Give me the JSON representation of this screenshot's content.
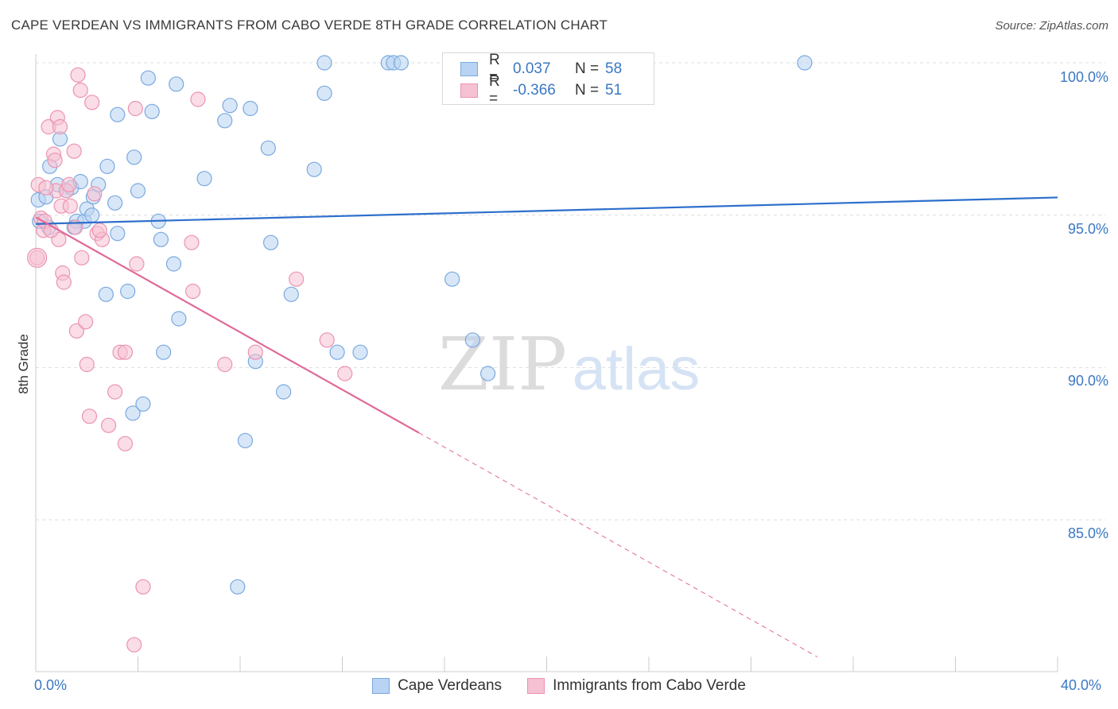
{
  "title": "CAPE VERDEAN VS IMMIGRANTS FROM CABO VERDE 8TH GRADE CORRELATION CHART",
  "source": "Source: ZipAtlas.com",
  "watermark": {
    "zip": "ZIP",
    "atlas": "atlas"
  },
  "colors": {
    "blue_fill": "#b8d3f3",
    "blue_stroke": "#7aa9df",
    "blue_line": "#2d6fcc",
    "pink_fill": "#f6c1d2",
    "pink_stroke": "#eb93b1",
    "pink_line": "#e0699a",
    "grid": "#dddddd",
    "tick_text": "#3b78c3"
  },
  "legend": {
    "rows": [
      {
        "r_label": "R =",
        "r_value": "0.037",
        "n_label": "N =",
        "n_value": "58"
      },
      {
        "r_label": "R =",
        "r_value": "-0.366",
        "n_label": "N =",
        "n_value": "51"
      }
    ]
  },
  "bottom_legend": [
    "Cape Verdeans",
    "Immigrants from Cabo Verde"
  ],
  "chart_data": {
    "type": "scatter",
    "title": "CAPE VERDEAN VS IMMIGRANTS FROM CABO VERDE 8TH GRADE CORRELATION CHART",
    "xlabel": "",
    "ylabel": "8th Grade",
    "xlim": [
      0,
      40
    ],
    "ylim": [
      80.5,
      101.0
    ],
    "x_tick_labels": [
      "0.0%",
      "40.0%"
    ],
    "y_ticks": [
      85,
      90,
      95,
      100
    ],
    "y_tick_labels": [
      "85.0%",
      "90.0%",
      "95.0%",
      "100.0%"
    ],
    "series": [
      {
        "name": "Cape Verdeans",
        "color": "#b8d3f3",
        "trend": {
          "x0": 0,
          "y0": 94.71,
          "x1": 40,
          "y1": 95.58,
          "dashed_from": null
        },
        "points": [
          [
            0.1,
            95.5
          ],
          [
            0.4,
            95.6
          ],
          [
            0.5,
            94.6
          ],
          [
            0.55,
            96.6
          ],
          [
            0.85,
            96.0
          ],
          [
            0.95,
            97.5
          ],
          [
            1.2,
            95.8
          ],
          [
            1.4,
            95.9
          ],
          [
            1.6,
            94.8
          ],
          [
            1.75,
            96.1
          ],
          [
            1.9,
            94.8
          ],
          [
            2.0,
            95.2
          ],
          [
            2.25,
            95.6
          ],
          [
            2.45,
            96.0
          ],
          [
            2.75,
            92.4
          ],
          [
            2.8,
            96.6
          ],
          [
            3.1,
            95.4
          ],
          [
            3.2,
            98.3
          ],
          [
            3.2,
            94.4
          ],
          [
            3.6,
            92.5
          ],
          [
            3.8,
            88.5
          ],
          [
            3.85,
            96.9
          ],
          [
            4.0,
            95.8
          ],
          [
            4.2,
            88.8
          ],
          [
            4.4,
            99.5
          ],
          [
            4.55,
            98.4
          ],
          [
            4.8,
            94.8
          ],
          [
            4.9,
            94.2
          ],
          [
            5.0,
            90.5
          ],
          [
            5.4,
            93.4
          ],
          [
            5.5,
            99.3
          ],
          [
            5.6,
            91.6
          ],
          [
            6.6,
            96.2
          ],
          [
            7.4,
            98.1
          ],
          [
            7.6,
            98.6
          ],
          [
            7.9,
            82.8
          ],
          [
            8.2,
            87.6
          ],
          [
            8.4,
            98.5
          ],
          [
            8.6,
            90.2
          ],
          [
            9.1,
            97.2
          ],
          [
            9.2,
            94.1
          ],
          [
            9.7,
            89.2
          ],
          [
            10.0,
            92.4
          ],
          [
            10.9,
            96.5
          ],
          [
            11.3,
            99.0
          ],
          [
            11.3,
            100.0
          ],
          [
            11.8,
            90.5
          ],
          [
            12.7,
            90.5
          ],
          [
            13.8,
            100.0
          ],
          [
            14.0,
            100.0
          ],
          [
            14.3,
            100.0
          ],
          [
            16.3,
            92.9
          ],
          [
            17.1,
            90.9
          ],
          [
            17.7,
            89.8
          ],
          [
            30.1,
            100.0
          ],
          [
            0.15,
            94.8
          ],
          [
            1.5,
            94.6
          ],
          [
            2.2,
            95.0
          ]
        ]
      },
      {
        "name": "Immigrants from Cabo Verde",
        "color": "#f6c1d2",
        "trend": {
          "x0": 0,
          "y0": 94.93,
          "x1": 30.6,
          "y1": 80.5,
          "dashed_from": 15.0
        },
        "points": [
          [
            0.05,
            93.6
          ],
          [
            0.1,
            96.0
          ],
          [
            0.2,
            94.9
          ],
          [
            0.3,
            94.5
          ],
          [
            0.35,
            94.8
          ],
          [
            0.5,
            97.9
          ],
          [
            0.7,
            97.0
          ],
          [
            0.75,
            96.8
          ],
          [
            0.8,
            95.8
          ],
          [
            0.85,
            98.2
          ],
          [
            0.9,
            94.2
          ],
          [
            0.95,
            97.9
          ],
          [
            1.0,
            95.3
          ],
          [
            1.05,
            93.1
          ],
          [
            1.1,
            92.8
          ],
          [
            1.2,
            95.8
          ],
          [
            1.35,
            95.3
          ],
          [
            1.5,
            97.1
          ],
          [
            1.55,
            94.6
          ],
          [
            1.6,
            91.2
          ],
          [
            1.65,
            99.6
          ],
          [
            1.75,
            99.1
          ],
          [
            1.8,
            93.6
          ],
          [
            1.95,
            91.5
          ],
          [
            2.0,
            90.1
          ],
          [
            2.1,
            88.4
          ],
          [
            2.2,
            98.7
          ],
          [
            2.3,
            95.7
          ],
          [
            2.4,
            94.4
          ],
          [
            2.6,
            94.2
          ],
          [
            2.85,
            88.1
          ],
          [
            3.1,
            89.2
          ],
          [
            3.3,
            90.5
          ],
          [
            3.5,
            90.5
          ],
          [
            3.5,
            87.5
          ],
          [
            3.85,
            80.9
          ],
          [
            3.9,
            98.5
          ],
          [
            3.95,
            93.4
          ],
          [
            4.2,
            82.8
          ],
          [
            6.1,
            94.1
          ],
          [
            6.15,
            92.5
          ],
          [
            6.35,
            98.8
          ],
          [
            7.4,
            90.1
          ],
          [
            8.6,
            90.5
          ],
          [
            10.2,
            92.9
          ],
          [
            11.4,
            90.9
          ],
          [
            12.1,
            89.8
          ],
          [
            0.6,
            94.5
          ],
          [
            1.3,
            96.0
          ],
          [
            0.4,
            95.9
          ],
          [
            2.5,
            94.5
          ]
        ]
      }
    ]
  }
}
